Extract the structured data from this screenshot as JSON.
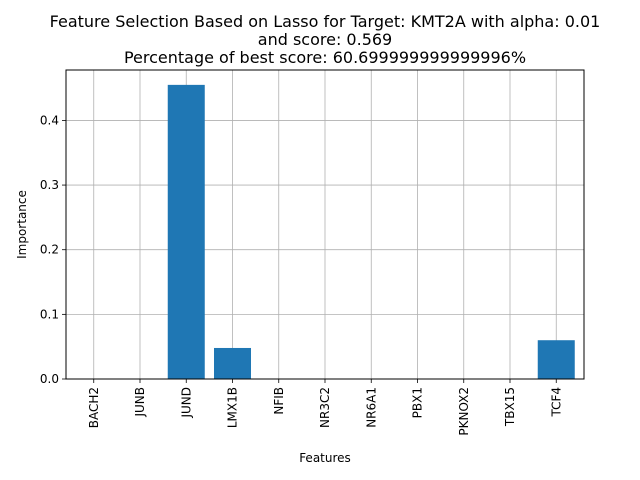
{
  "chart_data": {
    "type": "bar",
    "title": [
      "Feature Selection Based on Lasso for Target: KMT2A with alpha: 0.01",
      "and score: 0.569",
      "Percentage of best score: 60.699999999999996%"
    ],
    "xlabel": "Features",
    "ylabel": "Importance",
    "categories": [
      "BACH2",
      "JUNB",
      "JUND",
      "LMX1B",
      "NFIB",
      "NR3C2",
      "NR6A1",
      "PBX1",
      "PKNOX2",
      "TBX15",
      "TCF4"
    ],
    "values": [
      0,
      0,
      0.455,
      0.048,
      0,
      0,
      0,
      0,
      0,
      0,
      0.06
    ],
    "ylim": [
      0,
      0.478
    ],
    "yticks": [
      0.0,
      0.1,
      0.2,
      0.3,
      0.4
    ],
    "ytick_labels": [
      "0.0",
      "0.1",
      "0.2",
      "0.3",
      "0.4"
    ],
    "grid": true,
    "bar_color": "#1f77b4",
    "grid_color": "#b0b0b0"
  }
}
